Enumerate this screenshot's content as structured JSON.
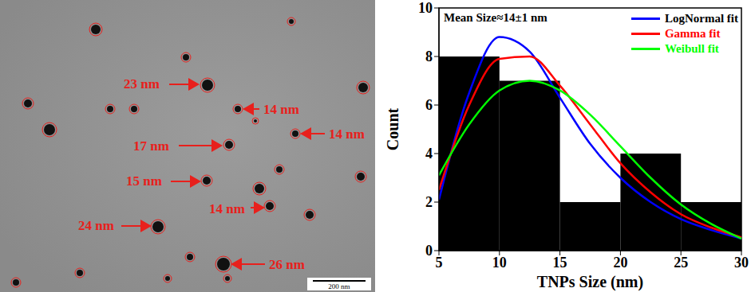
{
  "micrograph": {
    "particle_labels": [
      "23 nm",
      "14 nm",
      "17 nm",
      "14 nm",
      "15 nm",
      "14 nm",
      "24 nm",
      "26 nm"
    ],
    "scale_bar": "200 nm"
  },
  "chart_data": {
    "type": "histogram",
    "bins": [
      5,
      10,
      15,
      20,
      25,
      30
    ],
    "values": [
      8,
      7,
      2,
      4,
      2
    ],
    "color": "#000000",
    "x": [
      5,
      7.5,
      10,
      12.5,
      15,
      17.5,
      20,
      22.5,
      25,
      27.5,
      30
    ],
    "series": [
      {
        "name": "LogNormal fit",
        "type": "line",
        "color": "#0000ff",
        "values": [
          2.1,
          6.5,
          8.8,
          8.2,
          6.3,
          4.4,
          3.0,
          2.0,
          1.3,
          0.85,
          0.5
        ]
      },
      {
        "name": "Gamma fit",
        "type": "line",
        "color": "#ff0000",
        "values": [
          2.5,
          6.0,
          7.9,
          8.0,
          6.8,
          5.2,
          3.6,
          2.4,
          1.5,
          0.95,
          0.55
        ]
      },
      {
        "name": "Weibull fit",
        "type": "line",
        "color": "#00ff00",
        "values": [
          3.1,
          5.2,
          6.6,
          7.0,
          6.6,
          5.6,
          4.3,
          3.0,
          1.9,
          1.1,
          0.5
        ]
      }
    ],
    "annotations": [
      "Mean Size≈14±1 nm"
    ],
    "x_label": "TNPs Size (nm)",
    "y_label": "Count",
    "xlim": [
      5,
      30
    ],
    "ylim": [
      0,
      10
    ],
    "xticks": [
      5,
      10,
      15,
      20,
      25,
      30
    ],
    "yticks": [
      0,
      2,
      4,
      6,
      8,
      10
    ],
    "legend": "top-right"
  }
}
